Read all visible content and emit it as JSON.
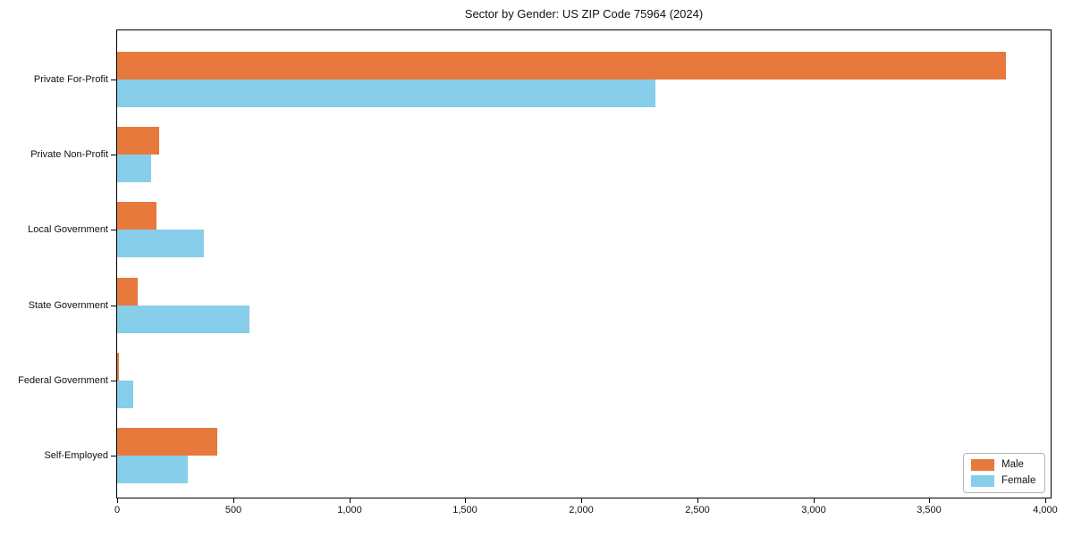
{
  "title": "Sector by Gender: US ZIP Code 75964 (2024)",
  "colors": {
    "male": "#e8793d",
    "female": "#87ceeb",
    "axis": "#000000",
    "legend_border": "#b5b5b5",
    "background": "#ffffff"
  },
  "chart_data": {
    "type": "bar",
    "orientation": "horizontal",
    "title": "Sector by Gender: US ZIP Code 75964 (2024)",
    "categories": [
      "Private For-Profit",
      "Private Non-Profit",
      "Local Government",
      "State Government",
      "Federal Government",
      "Self-Employed"
    ],
    "series": [
      {
        "name": "Male",
        "color": "#e8793d",
        "values": [
          3830,
          180,
          170,
          90,
          8,
          430
        ]
      },
      {
        "name": "Female",
        "color": "#87ceeb",
        "values": [
          2320,
          145,
          375,
          570,
          70,
          305
        ]
      }
    ],
    "xlim": [
      0,
      4000
    ],
    "x_ticks": [
      0,
      500,
      1000,
      1500,
      2000,
      2500,
      3000,
      3500,
      4000
    ],
    "x_tick_labels": [
      "0",
      "500",
      "1,000",
      "1,500",
      "2,000",
      "2,500",
      "3,000",
      "3,500",
      "4,000"
    ],
    "xlabel": "",
    "ylabel": "",
    "grid": false,
    "legend_position": "lower-right",
    "legend_labels": [
      "Male",
      "Female"
    ]
  }
}
